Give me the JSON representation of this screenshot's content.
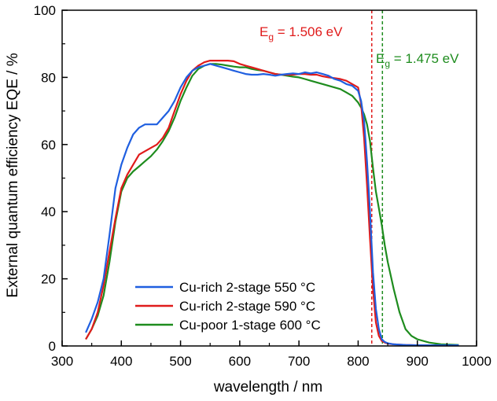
{
  "chart_data": {
    "type": "line",
    "xlabel": "wavelength / nm",
    "ylabel": "External quantum efficiency EQE / %",
    "xlim": [
      300,
      1000
    ],
    "ylim": [
      0,
      100
    ],
    "xticks": [
      300,
      400,
      500,
      600,
      700,
      800,
      900,
      1000
    ],
    "yticks": [
      0,
      20,
      40,
      60,
      80,
      100
    ],
    "xtick_labels": [
      "300",
      "400",
      "500",
      "600",
      "700",
      "800",
      "900",
      "1000"
    ],
    "ytick_labels": [
      "0",
      "20",
      "40",
      "60",
      "80",
      "100"
    ],
    "grid": false,
    "legend_position": "bottom-left",
    "series": [
      {
        "name": "Cu-rich 2-stage 550 °C",
        "color": "#1f5fe0",
        "x": [
          340,
          350,
          360,
          370,
          380,
          390,
          400,
          410,
          420,
          430,
          440,
          450,
          460,
          470,
          480,
          490,
          500,
          510,
          520,
          530,
          540,
          550,
          560,
          570,
          580,
          590,
          600,
          610,
          620,
          630,
          640,
          650,
          660,
          670,
          680,
          690,
          700,
          710,
          720,
          730,
          740,
          750,
          760,
          770,
          780,
          790,
          800,
          805,
          810,
          815,
          820,
          825,
          830,
          835,
          840,
          845,
          850,
          860,
          870,
          880,
          900,
          920,
          940,
          970
        ],
        "y": [
          4,
          8,
          13,
          20,
          33,
          47,
          54,
          59,
          63,
          65,
          66,
          66,
          66,
          68,
          70,
          73,
          77,
          80,
          82,
          83,
          83.5,
          84,
          83.5,
          83,
          82.5,
          82,
          81.5,
          81,
          80.8,
          80.8,
          81,
          80.8,
          80.5,
          80.8,
          81,
          81.2,
          81,
          81.5,
          81.2,
          81.5,
          81,
          80.5,
          79.5,
          79,
          78,
          77.5,
          76,
          73,
          67,
          55,
          40,
          22,
          11,
          5,
          2,
          1.2,
          0.8,
          0.5,
          0.4,
          0.3,
          0.2,
          0.2,
          0.2,
          0.2
        ]
      },
      {
        "name": "Cu-rich 2-stage 590 °C",
        "color": "#e01b1b",
        "x": [
          340,
          350,
          360,
          370,
          380,
          390,
          400,
          410,
          420,
          430,
          440,
          450,
          460,
          470,
          480,
          490,
          500,
          510,
          520,
          530,
          540,
          550,
          560,
          570,
          580,
          590,
          600,
          610,
          620,
          630,
          640,
          650,
          660,
          670,
          680,
          690,
          700,
          710,
          720,
          730,
          740,
          750,
          760,
          770,
          780,
          790,
          800,
          805,
          810,
          815,
          820,
          825,
          830,
          835,
          840,
          845,
          850,
          860,
          870,
          880,
          900,
          920,
          940,
          970
        ],
        "y": [
          2,
          5,
          10,
          18,
          28,
          38,
          47,
          51,
          54,
          57,
          58,
          59,
          60,
          62,
          65,
          70,
          75,
          79,
          82,
          83.5,
          84.5,
          85,
          85,
          85,
          85,
          84.8,
          84,
          83.5,
          83,
          82.5,
          82,
          81.5,
          81,
          80.8,
          80.8,
          80.8,
          81,
          81,
          80.8,
          80.8,
          80.3,
          80,
          79.8,
          79.5,
          79,
          78,
          77,
          72,
          62,
          48,
          32,
          17,
          7,
          3,
          1.5,
          1,
          0.7,
          0.5,
          0.4,
          0.3,
          0.2,
          0.2,
          0.2,
          0.2
        ]
      },
      {
        "name": "Cu-poor 1-stage 600 °C",
        "color": "#1e8c1e",
        "x": [
          340,
          350,
          360,
          370,
          380,
          390,
          400,
          410,
          420,
          430,
          440,
          450,
          460,
          470,
          480,
          490,
          500,
          510,
          520,
          530,
          540,
          550,
          560,
          570,
          580,
          590,
          600,
          610,
          620,
          630,
          640,
          650,
          660,
          670,
          680,
          690,
          700,
          710,
          720,
          730,
          740,
          750,
          760,
          770,
          780,
          790,
          800,
          805,
          810,
          815,
          820,
          825,
          830,
          835,
          840,
          845,
          850,
          860,
          870,
          880,
          890,
          900,
          920,
          940,
          970
        ],
        "y": [
          2,
          5,
          9,
          15,
          25,
          37,
          46,
          50,
          52,
          53.5,
          55,
          56.5,
          58.5,
          61,
          64,
          68,
          73,
          77,
          80.5,
          82.5,
          83.5,
          84,
          84,
          83.8,
          83.5,
          83.2,
          83,
          83,
          82.5,
          82.2,
          82,
          81.5,
          81,
          80.8,
          80.5,
          80.2,
          80,
          79.5,
          79,
          78.5,
          78,
          77.5,
          77,
          76.5,
          75.5,
          74.5,
          72.5,
          71,
          69,
          66,
          61,
          53,
          46,
          41,
          36,
          30,
          25,
          17,
          10,
          5,
          3,
          2,
          1,
          0.5,
          0.3
        ]
      }
    ],
    "annotations": [
      {
        "type": "vline",
        "x": 823,
        "color": "#e01b1b",
        "style": "dashed"
      },
      {
        "type": "vline",
        "x": 841,
        "color": "#1e8c1e",
        "style": "dashed"
      }
    ]
  },
  "annotation_labels": {
    "red": {
      "prefix": "E",
      "sub": "g",
      "value": " = 1.506 eV",
      "color": "#e01b1b"
    },
    "green": {
      "prefix": "E",
      "sub": "g",
      "value": " = 1.475 eV",
      "color": "#1e8c1e"
    }
  }
}
